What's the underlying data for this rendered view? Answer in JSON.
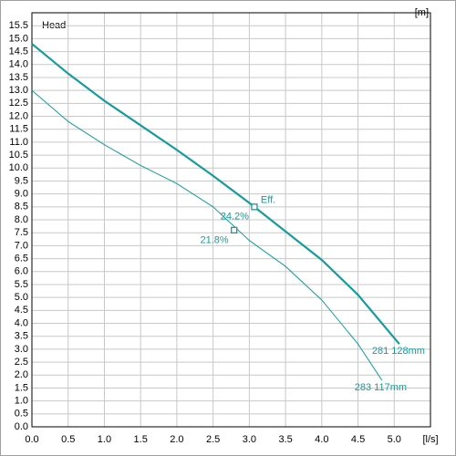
{
  "chart_data": {
    "type": "line",
    "title": "Head",
    "x_unit": "[l/s]",
    "y_unit": "[m]",
    "xlim": [
      0,
      5.5
    ],
    "ylim": [
      0,
      16
    ],
    "xticks": [
      {
        "value": 0,
        "label": "0.0"
      },
      {
        "value": 0.5,
        "label": "0.5"
      },
      {
        "value": 1,
        "label": "1.0"
      },
      {
        "value": 1.5,
        "label": "1.5"
      },
      {
        "value": 2,
        "label": "2.0"
      },
      {
        "value": 2.5,
        "label": "2.5"
      },
      {
        "value": 3,
        "label": "3.0"
      },
      {
        "value": 3.5,
        "label": "3.5"
      },
      {
        "value": 4,
        "label": "4.0"
      },
      {
        "value": 4.5,
        "label": "4.5"
      },
      {
        "value": 5,
        "label": "5.0"
      }
    ],
    "yticks": [
      {
        "value": 0,
        "label": "0.0"
      },
      {
        "value": 0.5,
        "label": "0.5"
      },
      {
        "value": 1,
        "label": "1.0"
      },
      {
        "value": 1.5,
        "label": "1.5"
      },
      {
        "value": 2,
        "label": "2.0"
      },
      {
        "value": 2.5,
        "label": "2.5"
      },
      {
        "value": 3,
        "label": "3.0"
      },
      {
        "value": 3.5,
        "label": "3.5"
      },
      {
        "value": 4,
        "label": "4.0"
      },
      {
        "value": 4.5,
        "label": "4.5"
      },
      {
        "value": 5,
        "label": "5.0"
      },
      {
        "value": 5.5,
        "label": "5.5"
      },
      {
        "value": 6,
        "label": "6.0"
      },
      {
        "value": 6.5,
        "label": "6.5"
      },
      {
        "value": 7,
        "label": "7.0"
      },
      {
        "value": 7.5,
        "label": "7.5"
      },
      {
        "value": 8,
        "label": "8.0"
      },
      {
        "value": 8.5,
        "label": "8.5"
      },
      {
        "value": 9,
        "label": "9.0"
      },
      {
        "value": 9.5,
        "label": "9.5"
      },
      {
        "value": 10,
        "label": "10.0"
      },
      {
        "value": 10.5,
        "label": "10.5"
      },
      {
        "value": 11,
        "label": "11.0"
      },
      {
        "value": 11.5,
        "label": "11.5"
      },
      {
        "value": 12,
        "label": "12.0"
      },
      {
        "value": 12.5,
        "label": "12.5"
      },
      {
        "value": 13,
        "label": "13.0"
      },
      {
        "value": 13.5,
        "label": "13.5"
      },
      {
        "value": 14,
        "label": "14.0"
      },
      {
        "value": 14.5,
        "label": "14.5"
      },
      {
        "value": 15,
        "label": "15.0"
      },
      {
        "value": 15.5,
        "label": "15.5"
      }
    ],
    "grid": true,
    "series": [
      {
        "name": "281 128mm",
        "color": "#169c9c",
        "width": 2.2,
        "x": [
          0,
          0.5,
          1,
          1.5,
          2,
          2.5,
          3,
          3.5,
          4,
          4.5,
          5.07
        ],
        "values": [
          14.8,
          13.65,
          12.6,
          11.65,
          10.7,
          9.7,
          8.65,
          7.55,
          6.45,
          5.1,
          3.2
        ],
        "marker": {
          "x": 3.07,
          "y": 8.5,
          "label": "24.2%"
        },
        "marker_note": "Eff."
      },
      {
        "name": "283 117mm",
        "color": "#169c9c",
        "width": 1,
        "x": [
          0,
          0.5,
          1,
          1.5,
          2,
          2.5,
          3,
          3.5,
          4,
          4.5,
          4.83
        ],
        "values": [
          13.0,
          11.8,
          10.9,
          10.1,
          9.4,
          8.5,
          7.2,
          6.2,
          4.9,
          3.2,
          1.8
        ],
        "marker": {
          "x": 2.79,
          "y": 7.6,
          "label": "21.8%"
        }
      }
    ]
  }
}
